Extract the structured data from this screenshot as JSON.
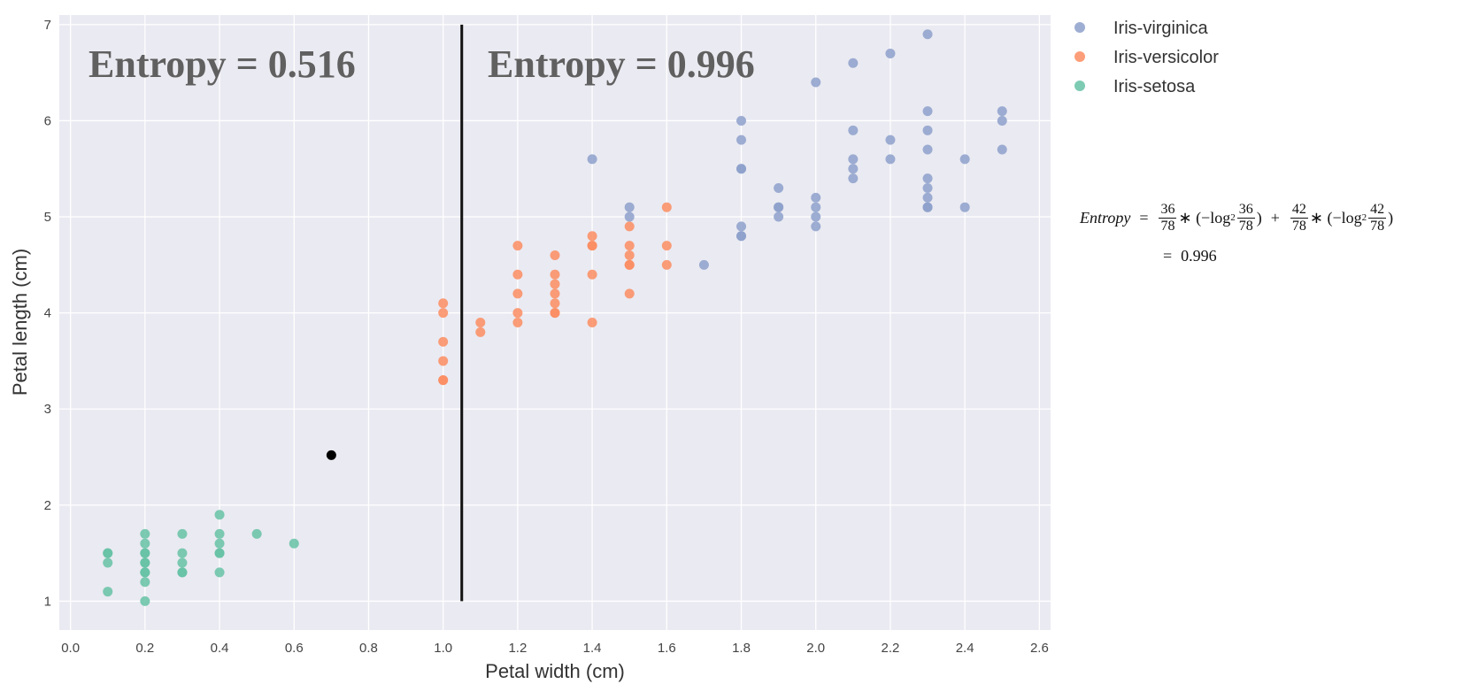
{
  "chart_data": {
    "type": "scatter",
    "xlabel": "Petal width (cm)",
    "ylabel": "Petal length (cm)",
    "xlim": [
      -0.03,
      2.63
    ],
    "ylim": [
      0.7,
      7.1
    ],
    "xticks": [
      "0.0",
      "0.2",
      "0.4",
      "0.6",
      "0.8",
      "1.0",
      "1.2",
      "1.4",
      "1.6",
      "1.8",
      "2.0",
      "2.2",
      "2.4",
      "2.6"
    ],
    "yticks": [
      "1",
      "2",
      "3",
      "4",
      "5",
      "6",
      "7"
    ],
    "grid": true,
    "legend_position": "right-top",
    "annotations": {
      "left_entropy": "Entropy = 0.516",
      "right_entropy": "Entropy = 0.996"
    },
    "split_line": {
      "x": 1.05,
      "y_range": [
        1.0,
        7.0
      ]
    },
    "extra_point": {
      "x": 0.7,
      "y": 2.52,
      "color": "#000000"
    },
    "series": [
      {
        "name": "Iris-virginica",
        "color": "#8da0cb",
        "x": [
          1.4,
          1.5,
          1.5,
          1.7,
          1.8,
          1.8,
          1.8,
          1.8,
          1.8,
          1.8,
          1.8,
          1.9,
          1.9,
          1.9,
          1.9,
          2.0,
          2.0,
          2.0,
          2.0,
          2.0,
          2.1,
          2.1,
          2.1,
          2.1,
          2.1,
          2.2,
          2.2,
          2.2,
          2.3,
          2.3,
          2.3,
          2.3,
          2.3,
          2.3,
          2.3,
          2.3,
          2.3,
          2.4,
          2.4,
          2.5,
          2.5,
          2.5
        ],
        "y": [
          5.6,
          5.0,
          5.1,
          4.5,
          4.8,
          4.9,
          4.8,
          5.5,
          5.5,
          5.8,
          6.0,
          5.0,
          5.1,
          5.1,
          5.3,
          4.9,
          5.0,
          5.1,
          5.2,
          6.4,
          5.4,
          5.5,
          5.6,
          5.9,
          6.6,
          5.6,
          5.8,
          6.7,
          5.1,
          5.2,
          5.3,
          5.4,
          5.7,
          5.9,
          6.1,
          6.9,
          5.1,
          5.1,
          5.6,
          5.7,
          6.0,
          6.1
        ]
      },
      {
        "name": "Iris-versicolor",
        "color": "#fc8d62",
        "x": [
          1.0,
          1.0,
          1.0,
          1.0,
          1.0,
          1.0,
          1.1,
          1.1,
          1.2,
          1.2,
          1.2,
          1.2,
          1.2,
          1.3,
          1.3,
          1.3,
          1.3,
          1.3,
          1.3,
          1.3,
          1.4,
          1.4,
          1.4,
          1.4,
          1.4,
          1.5,
          1.5,
          1.5,
          1.5,
          1.5,
          1.5,
          1.6,
          1.6,
          1.6
        ],
        "y": [
          3.3,
          3.3,
          3.5,
          3.7,
          4.0,
          4.1,
          3.8,
          3.9,
          3.9,
          4.0,
          4.2,
          4.4,
          4.7,
          4.0,
          4.0,
          4.1,
          4.2,
          4.3,
          4.4,
          4.6,
          3.9,
          4.4,
          4.7,
          4.7,
          4.8,
          4.2,
          4.5,
          4.5,
          4.6,
          4.7,
          4.9,
          4.5,
          4.7,
          5.1
        ]
      },
      {
        "name": "Iris-setosa",
        "color": "#66c2a5",
        "x": [
          0.1,
          0.1,
          0.1,
          0.1,
          0.2,
          0.2,
          0.2,
          0.2,
          0.2,
          0.2,
          0.2,
          0.2,
          0.2,
          0.2,
          0.3,
          0.3,
          0.3,
          0.3,
          0.3,
          0.4,
          0.4,
          0.4,
          0.4,
          0.4,
          0.4,
          0.5,
          0.6
        ],
        "y": [
          1.1,
          1.4,
          1.5,
          1.5,
          1.0,
          1.2,
          1.3,
          1.3,
          1.4,
          1.4,
          1.5,
          1.5,
          1.6,
          1.7,
          1.3,
          1.3,
          1.4,
          1.5,
          1.7,
          1.3,
          1.5,
          1.5,
          1.6,
          1.7,
          1.9,
          1.7,
          1.6
        ]
      }
    ]
  },
  "formula": {
    "lhs": "Entropy",
    "eq": "=",
    "t1_num": "36",
    "t1_den": "78",
    "t1_mid": "∗ (−log",
    "t1_base": "2",
    "t1_inner_num": "36",
    "t1_inner_den": "78",
    "close": ")",
    "plus": "+",
    "t2_num": "42",
    "t2_den": "78",
    "t2_mid": "∗ (−log",
    "t2_base": "2",
    "t2_inner_num": "42",
    "t2_inner_den": "78",
    "result": "0.996"
  }
}
